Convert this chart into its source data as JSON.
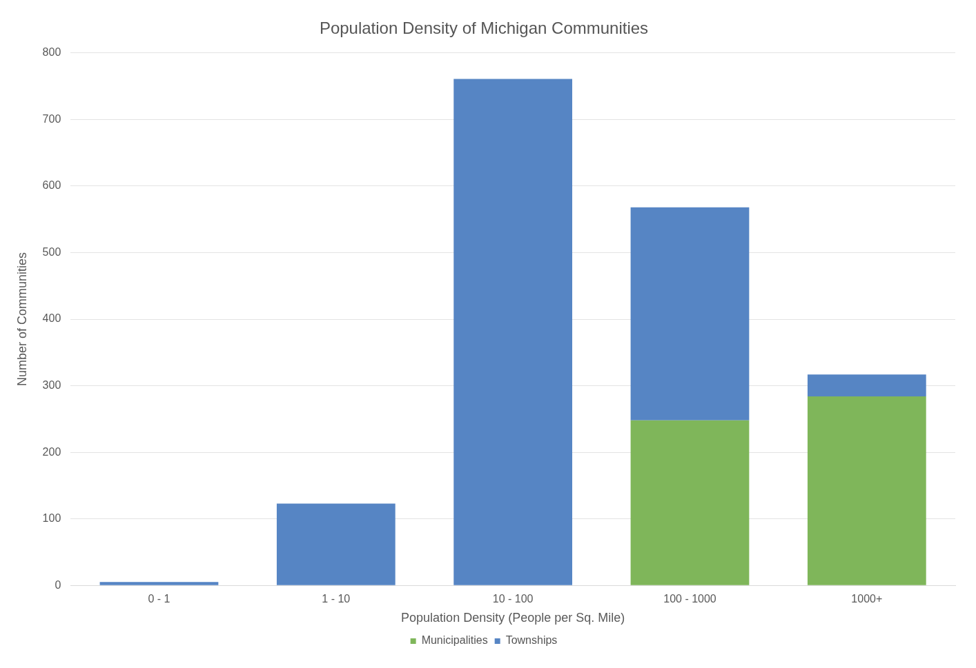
{
  "chart_data": {
    "type": "bar",
    "title": "Population Density of Michigan Communities",
    "xlabel": "Population Density (People per Sq. Mile)",
    "ylabel": "Number of Communities",
    "categories": [
      "0 - 1",
      "1 - 10",
      "10 - 100",
      "100 - 1000",
      "1000+"
    ],
    "series": [
      {
        "name": "Municipalities",
        "color": "#7fb65a",
        "values": [
          0,
          0,
          0,
          248,
          284
        ]
      },
      {
        "name": "Townships",
        "color": "#5685c4",
        "values": [
          5,
          123,
          761,
          320,
          33
        ]
      }
    ],
    "stacked": true,
    "ylim": [
      0,
      800
    ],
    "yticks": [
      0,
      100,
      200,
      300,
      400,
      500,
      600,
      700,
      800
    ],
    "grid": "y",
    "legend": "bottom"
  }
}
